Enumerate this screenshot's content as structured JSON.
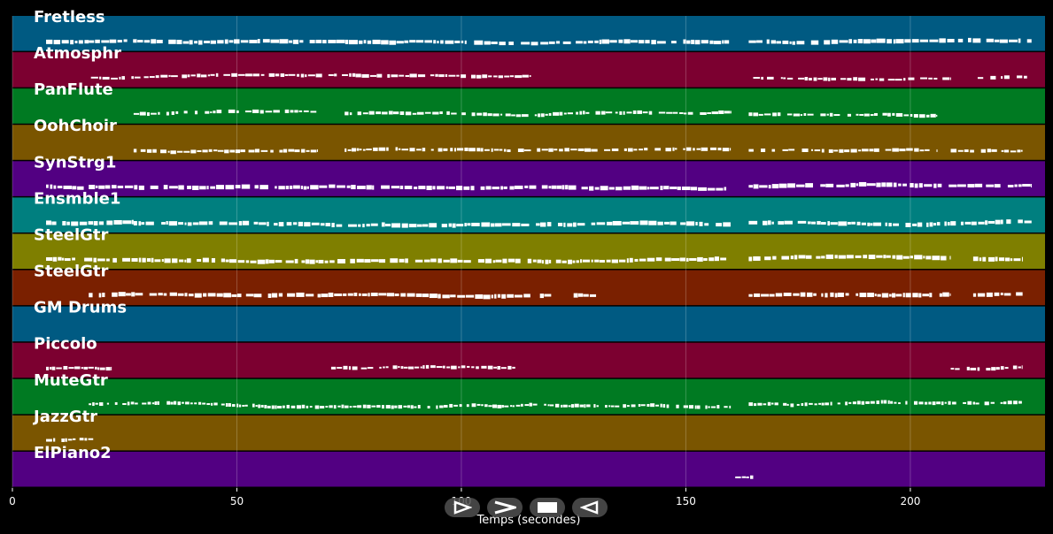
{
  "chart_data": {
    "type": "piano-roll",
    "xlabel": "Temps (secondes)",
    "xlim": [
      0,
      230
    ],
    "xticks": [
      0,
      50,
      100,
      150,
      200
    ],
    "grid": true,
    "tracks": [
      {
        "name": "Fretless",
        "color": "#005a82",
        "segments": [
          [
            7.5,
            17
          ],
          [
            17,
            160
          ],
          [
            164,
            227
          ]
        ],
        "density": 1.0
      },
      {
        "name": "Atmosphr",
        "color": "#7c0030",
        "segments": [
          [
            17.5,
            115.5
          ],
          [
            165,
            209
          ],
          [
            215,
            226
          ]
        ],
        "density": 0.8
      },
      {
        "name": "PanFlute",
        "color": "#007a22",
        "segments": [
          [
            27,
            68
          ],
          [
            74,
            160
          ],
          [
            164,
            206
          ]
        ],
        "density": 0.7
      },
      {
        "name": "OohChoir",
        "color": "#7a5500",
        "segments": [
          [
            27,
            68
          ],
          [
            74,
            160
          ],
          [
            164,
            206
          ],
          [
            209,
            225
          ]
        ],
        "density": 0.7
      },
      {
        "name": "SynStrg1",
        "color": "#520082",
        "segments": [
          [
            7.5,
            17
          ],
          [
            17,
            159
          ],
          [
            164,
            227
          ]
        ],
        "density": 1.0
      },
      {
        "name": "Ensmble1",
        "color": "#007f7f",
        "segments": [
          [
            7.5,
            27
          ],
          [
            27,
            160
          ],
          [
            164,
            227
          ]
        ],
        "density": 1.0
      },
      {
        "name": "SteelGtr",
        "color": "#7f7f00",
        "segments": [
          [
            7.5,
            14
          ],
          [
            16,
            159
          ],
          [
            164,
            209
          ],
          [
            214,
            225
          ]
        ],
        "density": 0.9
      },
      {
        "name": "SteelGtr",
        "color": "#7a2000",
        "segments": [
          [
            17,
            115.5
          ],
          [
            117.5,
            120
          ],
          [
            125,
            130
          ],
          [
            164,
            209
          ],
          [
            214,
            225
          ]
        ],
        "density": 0.9
      },
      {
        "name": "GM Drums",
        "color": "#005a82",
        "segments": [],
        "density": 0
      },
      {
        "name": "Piccolo",
        "color": "#7c0030",
        "segments": [
          [
            7.5,
            22
          ],
          [
            71,
            112
          ],
          [
            209,
            225
          ]
        ],
        "density": 0.6
      },
      {
        "name": "MuteGtr",
        "color": "#007a22",
        "segments": [
          [
            17,
            160
          ],
          [
            164,
            225
          ]
        ],
        "density": 0.4
      },
      {
        "name": "JazzGtr",
        "color": "#7a5500",
        "segments": [
          [
            7.5,
            18
          ]
        ],
        "density": 0.6
      },
      {
        "name": "ElPiano2",
        "color": "#520082",
        "segments": [
          [
            161,
            165
          ]
        ],
        "density": 0.6
      }
    ]
  },
  "controls": {
    "icons": [
      "play-icon",
      "fast-forward-icon",
      "stop-icon",
      "rewind-icon"
    ]
  }
}
